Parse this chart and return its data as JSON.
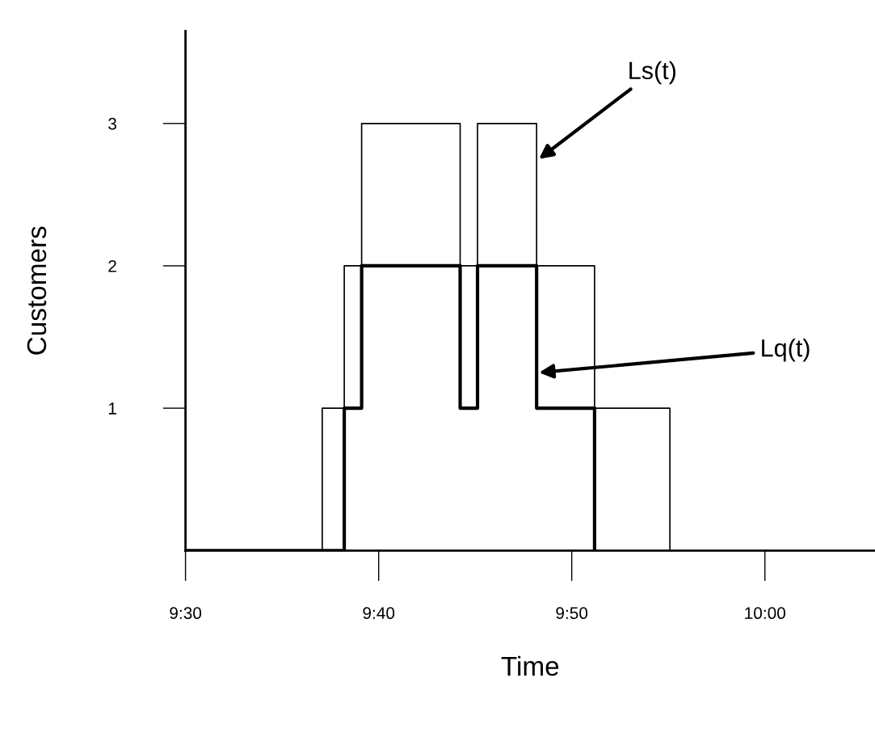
{
  "chart_data": {
    "type": "step",
    "xlabel": "Time",
    "ylabel": "Customers",
    "xlim": [
      9.5,
      10.095
    ],
    "xticks": [
      {
        "value": 9.5,
        "label": "9:30"
      },
      {
        "value": 9.6667,
        "label": "9:40"
      },
      {
        "value": 9.8333,
        "label": "9:50"
      },
      {
        "value": 10.0,
        "label": "10:00"
      }
    ],
    "ylim": [
      0,
      3.65
    ],
    "yticks": [
      1,
      2,
      3
    ],
    "series": [
      {
        "color": "#000000",
        "x": [
          9.5,
          9.618,
          9.637,
          9.652,
          9.737,
          9.752,
          9.803,
          9.853,
          9.918
        ],
        "values": [
          0,
          1,
          2,
          3,
          2,
          3,
          2,
          1,
          0
        ]
      },
      {
        "color": "#000000",
        "x": [
          9.5,
          9.637,
          9.652,
          9.737,
          9.752,
          9.803,
          9.853
        ],
        "values": [
          0,
          1,
          2,
          1,
          2,
          1,
          0
        ]
      }
    ],
    "annotations": [
      {
        "text": "Ls(t)",
        "x": 9.805,
        "y": 2.75
      },
      {
        "text": "Lq(t)",
        "x": 9.805,
        "y": 1.25
      }
    ],
    "grid": false,
    "legend": false
  }
}
